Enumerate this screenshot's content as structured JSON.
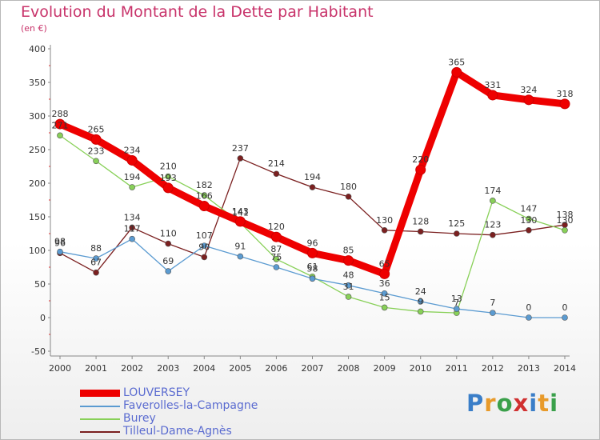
{
  "title": "Evolution du Montant de la Dette par Habitant",
  "subtitle": "(en €)",
  "logo": {
    "text": "Proxiti",
    "letter_colors": [
      "#3a7ec8",
      "#e89a2a",
      "#3aa04a",
      "#d03030",
      "#3a7ec8",
      "#e89a2a",
      "#3aa04a"
    ]
  },
  "chart_data": {
    "type": "line",
    "x": [
      "2000",
      "2001",
      "2002",
      "2003",
      "2004",
      "2005",
      "2006",
      "2007",
      "2008",
      "2009",
      "2010",
      "2011",
      "2012",
      "2013",
      "2014"
    ],
    "ylim": [
      -50,
      400
    ],
    "yticks": [
      -50,
      0,
      50,
      100,
      150,
      200,
      250,
      300,
      350,
      400
    ],
    "grid": false,
    "legend_position": "bottom-left",
    "series": [
      {
        "name": "LOUVERSEY",
        "color": "#ee0000",
        "values": [
          288,
          265,
          234,
          193,
          166,
          143,
          120,
          96,
          85,
          65,
          220,
          365,
          331,
          324,
          318
        ],
        "labels": [
          "288",
          "265",
          "234",
          "193",
          "166",
          "143",
          "120",
          "96",
          "85",
          "65",
          "220",
          "365",
          "331",
          "324",
          "318"
        ]
      },
      {
        "name": "Faverolles-la-Campagne",
        "color": "#5b9bd1",
        "values": [
          98,
          88,
          117,
          69,
          107,
          91,
          75,
          58,
          48,
          36,
          24,
          13,
          7,
          0,
          0
        ],
        "labels": [
          "98",
          "88",
          "117",
          "69",
          "107",
          "91",
          "75",
          "58",
          "48",
          "36",
          "24",
          "13",
          "7",
          "0",
          "0"
        ]
      },
      {
        "name": "Burey",
        "color": "#88d058",
        "values": [
          271,
          233,
          194,
          210,
          182,
          141,
          87,
          61,
          31,
          15,
          9,
          7,
          174,
          147,
          130
        ],
        "labels": [
          "271",
          "233",
          "194",
          "210",
          "182",
          "141",
          "87",
          "61",
          "31",
          "15",
          "9",
          "7",
          "174",
          "147",
          "130"
        ]
      },
      {
        "name": "Tilleul-Dame-Agnès",
        "color": "#7b2020",
        "values": [
          96,
          67,
          134,
          110,
          90,
          237,
          214,
          194,
          180,
          130,
          128,
          125,
          123,
          130,
          138
        ],
        "labels": [
          "96",
          "67",
          "134",
          "110",
          "90",
          "237",
          "214",
          "194",
          "180",
          "130",
          "128",
          "125",
          "123",
          "130",
          "138"
        ]
      }
    ]
  }
}
